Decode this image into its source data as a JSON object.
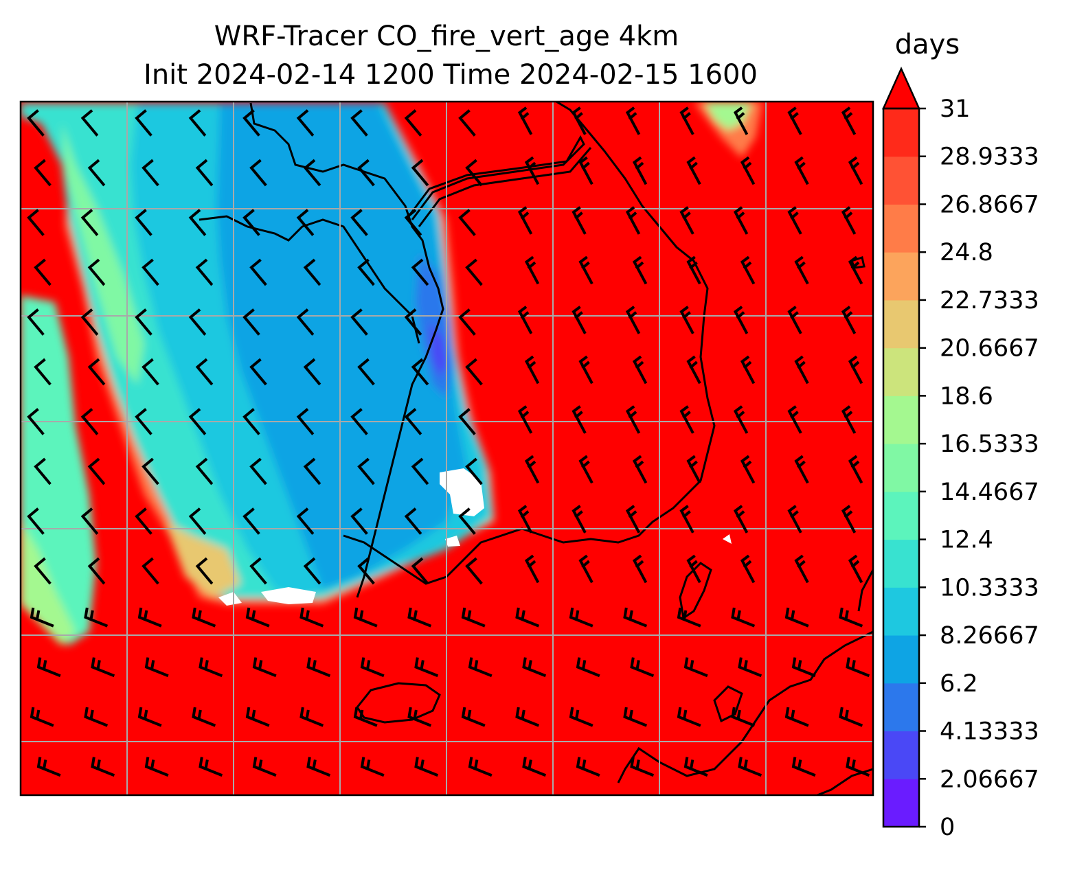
{
  "figure": {
    "title_line1": "WRF-Tracer CO_fire_vert_age 4km",
    "title_line2": "Init 2024-02-14 1200 Time 2024-02-15 1600"
  },
  "colorbar": {
    "unit_label": "days",
    "extend": "max",
    "ticks": [
      "0",
      "2.06667",
      "4.13333",
      "6.2",
      "8.26667",
      "10.3333",
      "12.4",
      "14.4667",
      "16.5333",
      "18.6",
      "20.6667",
      "22.7333",
      "24.8",
      "26.8667",
      "28.9333",
      "31"
    ],
    "colors": [
      "#6a1cff",
      "#4a48f6",
      "#2c78ec",
      "#0ea4e4",
      "#1ec8e0",
      "#38e2d0",
      "#5cf4bc",
      "#80f8a4",
      "#a4f890",
      "#cce47c",
      "#e8c870",
      "#fca45c",
      "#ff7c48",
      "#ff5234",
      "#ff2a1a"
    ],
    "extend_color": "#ff0000"
  },
  "map": {
    "field": "CO_fire_vert_age",
    "background_color": "#ff0000",
    "gridline_color": "#a9a9a9",
    "coastline_color": "#000000",
    "wind_barb_color": "#000000",
    "missing_color": "#ffffff"
  }
}
